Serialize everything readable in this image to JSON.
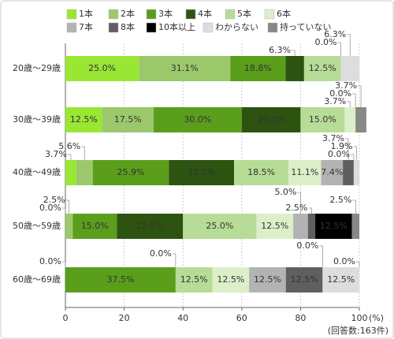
{
  "chart_data": {
    "type": "stacked-bar-horizontal",
    "categories": [
      "20歳～29歳",
      "30歳～39歳",
      "40歳～49歳",
      "50歳～59歳",
      "60歳～69歳"
    ],
    "series": [
      {
        "name": "1本",
        "color": "#99e633",
        "values": [
          25.0,
          12.5,
          3.7,
          0.0,
          0.0
        ],
        "value_labels": [
          "25.0%",
          "12.5%",
          "3.7%",
          "0.0%",
          "0.0%"
        ]
      },
      {
        "name": "2本",
        "color": "#9cc86c",
        "values": [
          31.1,
          17.5,
          5.6,
          2.5,
          0
        ],
        "value_labels": [
          "31.1%",
          "17.5%",
          "5.6%",
          "2.5%",
          null
        ]
      },
      {
        "name": "3本",
        "color": "#5a9e1c",
        "values": [
          18.8,
          30.0,
          25.9,
          15.0,
          37.5
        ],
        "value_labels": [
          "18.8%",
          "30.0%",
          "25.9%",
          "15.0%",
          "37.5%"
        ]
      },
      {
        "name": "4本",
        "color": "#2c5410",
        "values": [
          6.3,
          20.0,
          22.2,
          22.5,
          0.0
        ],
        "value_labels": [
          "6.3%",
          "20.0%",
          "22.2%",
          "22.5%",
          "0.0%"
        ]
      },
      {
        "name": "5本",
        "color": "#b7dc96",
        "values": [
          12.5,
          15.0,
          18.5,
          25.0,
          12.5
        ],
        "value_labels": [
          "12.5%",
          "15.0%",
          "18.5%",
          "25.0%",
          "12.5%"
        ]
      },
      {
        "name": "6本",
        "color": "#dcefc8",
        "values": [
          0.0,
          3.7,
          11.1,
          12.5,
          12.5
        ],
        "value_labels": [
          "0.0%",
          "3.7%",
          "11.1%",
          "12.5%",
          "12.5%"
        ]
      },
      {
        "name": "7本",
        "color": "#b3b3b3",
        "values": [
          0,
          0.0,
          7.4,
          5.0,
          12.5
        ],
        "value_labels": [
          null,
          "0.0%",
          "7.4%",
          "5.0%",
          "12.5%"
        ]
      },
      {
        "name": "8本",
        "color": "#5f5f5f",
        "values": [
          0,
          0,
          3.7,
          2.5,
          12.5
        ],
        "value_labels": [
          null,
          null,
          "3.7%",
          "2.5%",
          "12.5%"
        ]
      },
      {
        "name": "10本以上",
        "color": "#000000",
        "values": [
          0,
          0,
          0.0,
          12.5,
          0.0
        ],
        "value_labels": [
          null,
          null,
          "0.0%",
          "12.5%",
          "0.0%"
        ]
      },
      {
        "name": "わからない",
        "color": "#dddddd",
        "values": [
          6.3,
          0,
          1.9,
          0,
          12.5
        ],
        "value_labels": [
          "6.3%",
          null,
          "1.9%",
          null,
          "12.5%"
        ]
      },
      {
        "name": "持っていない",
        "color": "#888888",
        "values": [
          0,
          3.7,
          0,
          2.5,
          0.0
        ],
        "value_labels": [
          null,
          "3.7%",
          null,
          "2.5%",
          "0.0%"
        ]
      }
    ],
    "xlim": [
      0,
      100
    ],
    "xticks": [
      0,
      20,
      40,
      60,
      80,
      100
    ],
    "x_unit": "(%)",
    "note": "(回答数:163件)",
    "grid": true
  }
}
